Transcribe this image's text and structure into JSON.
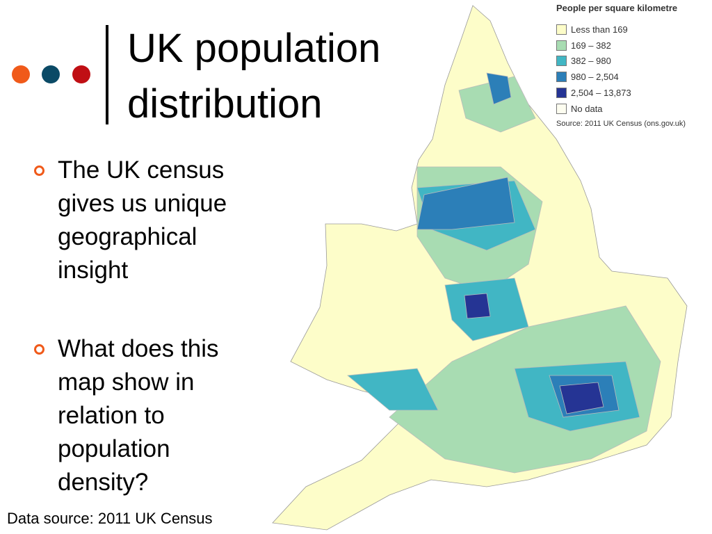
{
  "title": {
    "line1": "UK population",
    "line2": "distribution"
  },
  "bullets": [
    "The UK census gives us unique geographical insight",
    "What does this map show in relation to population density?"
  ],
  "footer": "Data source: 2011 UK Census",
  "legend": {
    "title": "People per square kilometre",
    "items": [
      {
        "label": "Less than 169",
        "color": "#fdfdc9"
      },
      {
        "label": "169 – 382",
        "color": "#a8dcb2"
      },
      {
        "label": "382 – 980",
        "color": "#41b6c4"
      },
      {
        "label": "980 – 2,504",
        "color": "#2c7fb8"
      },
      {
        "label": "2,504 – 13,873",
        "color": "#253494"
      },
      {
        "label": "No data",
        "color": "#fdfdf0"
      }
    ],
    "source": "Source: 2011 UK Census (ons.gov.uk)"
  }
}
